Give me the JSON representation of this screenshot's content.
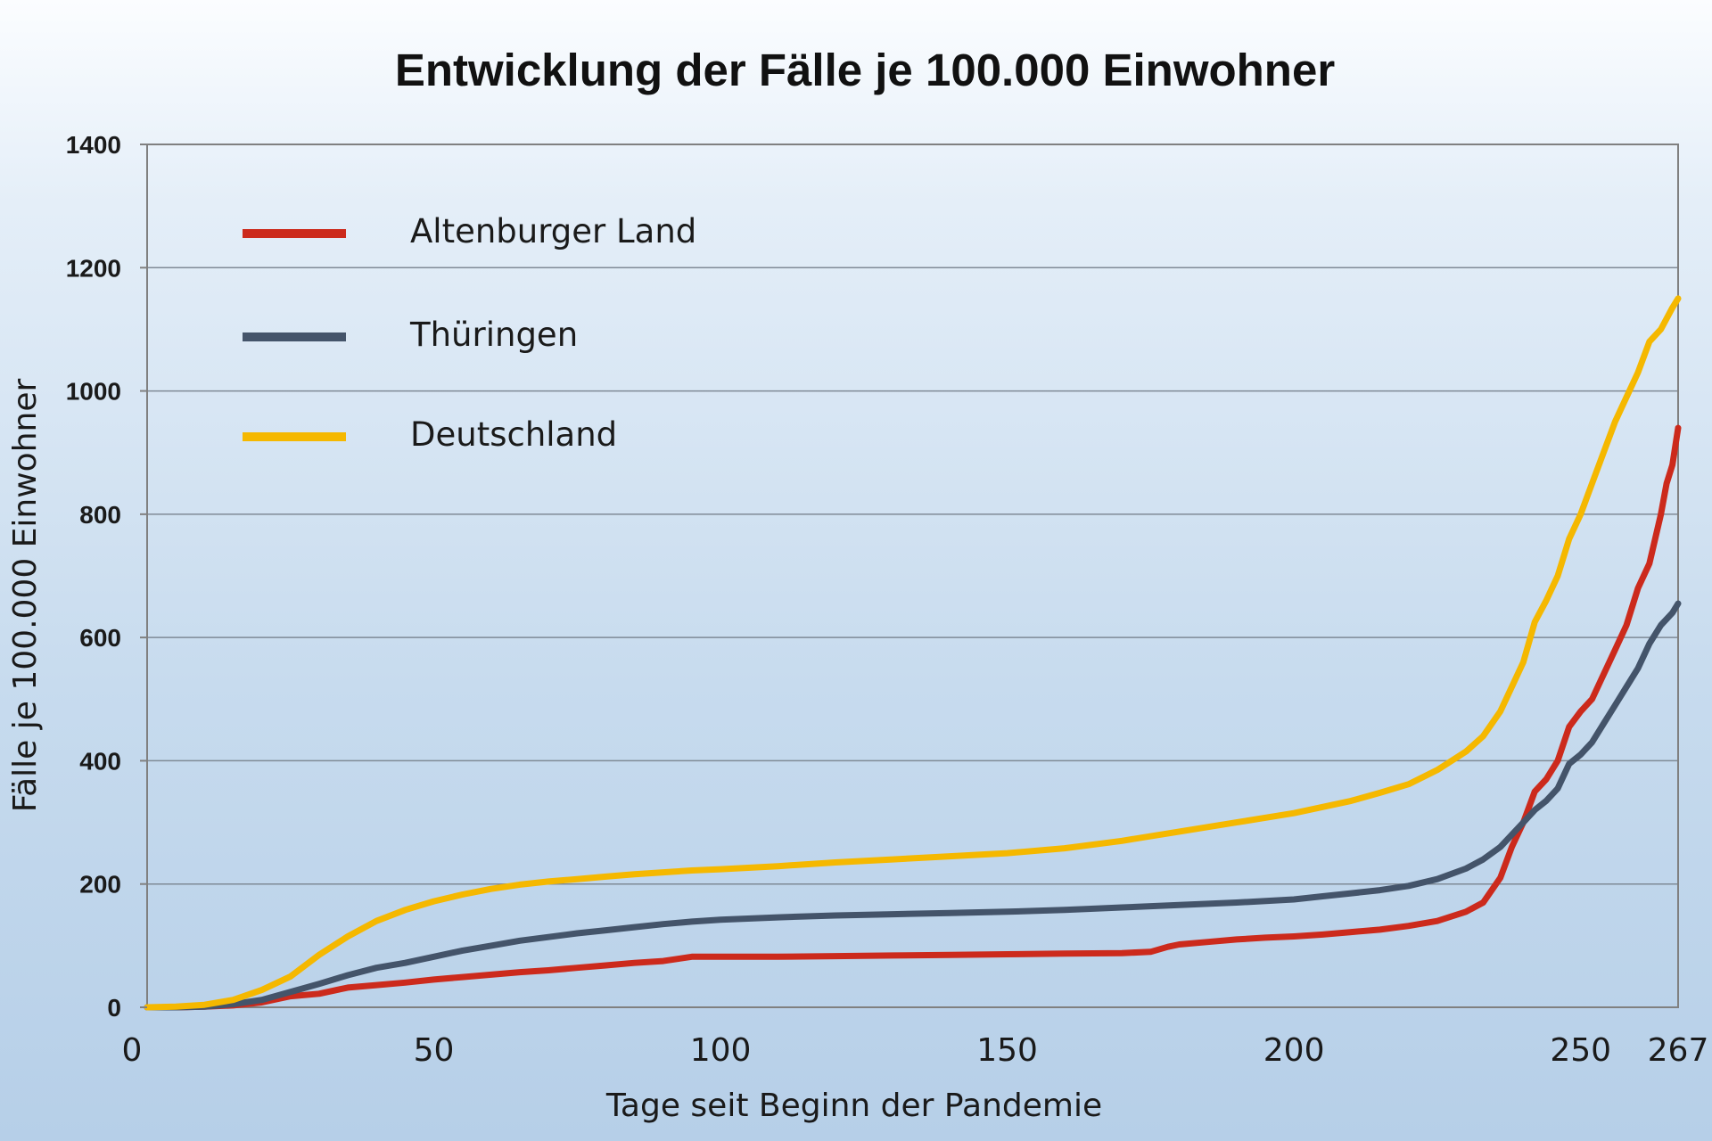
{
  "chart_data": {
    "type": "line",
    "title": "Entwicklung der Fälle je 100.000 Einwohner",
    "xlabel": "Tage seit Beginn der Pandemie",
    "ylabel": "Fälle  je 100.000 Einwohner",
    "xlim": [
      0,
      267
    ],
    "ylim": [
      0,
      1400
    ],
    "grid": true,
    "legend_position": "top-left",
    "xticks": [
      {
        "value": 0,
        "label": "0"
      },
      {
        "value": 50,
        "label": "50"
      },
      {
        "value": 100,
        "label": "100"
      },
      {
        "value": 150,
        "label": "150"
      },
      {
        "value": 200,
        "label": "200"
      },
      {
        "value": 250,
        "label": "250"
      },
      {
        "value": 267,
        "label": "267"
      }
    ],
    "yticks": [
      {
        "value": 0,
        "label": "0"
      },
      {
        "value": 200,
        "label": "200"
      },
      {
        "value": 400,
        "label": "400"
      },
      {
        "value": 600,
        "label": "600"
      },
      {
        "value": 800,
        "label": "800"
      },
      {
        "value": 1000,
        "label": "1000"
      },
      {
        "value": 1200,
        "label": "1200"
      },
      {
        "value": 1400,
        "label": "1400"
      }
    ],
    "series": [
      {
        "name": "Altenburger Land",
        "color": "#cc2a1c",
        "points": [
          [
            0,
            0
          ],
          [
            5,
            0
          ],
          [
            10,
            1
          ],
          [
            15,
            3
          ],
          [
            20,
            8
          ],
          [
            25,
            18
          ],
          [
            30,
            22
          ],
          [
            35,
            32
          ],
          [
            40,
            36
          ],
          [
            45,
            40
          ],
          [
            50,
            45
          ],
          [
            55,
            49
          ],
          [
            60,
            53
          ],
          [
            65,
            57
          ],
          [
            70,
            60
          ],
          [
            75,
            64
          ],
          [
            80,
            68
          ],
          [
            85,
            72
          ],
          [
            90,
            75
          ],
          [
            95,
            82
          ],
          [
            100,
            82
          ],
          [
            110,
            82
          ],
          [
            120,
            83
          ],
          [
            130,
            84
          ],
          [
            140,
            85
          ],
          [
            150,
            86
          ],
          [
            160,
            87
          ],
          [
            170,
            88
          ],
          [
            175,
            90
          ],
          [
            178,
            98
          ],
          [
            180,
            102
          ],
          [
            185,
            106
          ],
          [
            190,
            110
          ],
          [
            195,
            113
          ],
          [
            200,
            115
          ],
          [
            205,
            118
          ],
          [
            210,
            122
          ],
          [
            215,
            126
          ],
          [
            220,
            132
          ],
          [
            225,
            140
          ],
          [
            230,
            155
          ],
          [
            233,
            170
          ],
          [
            236,
            210
          ],
          [
            238,
            260
          ],
          [
            240,
            300
          ],
          [
            242,
            350
          ],
          [
            244,
            370
          ],
          [
            246,
            400
          ],
          [
            248,
            455
          ],
          [
            250,
            480
          ],
          [
            252,
            500
          ],
          [
            254,
            540
          ],
          [
            256,
            580
          ],
          [
            258,
            620
          ],
          [
            260,
            680
          ],
          [
            262,
            720
          ],
          [
            264,
            800
          ],
          [
            265,
            850
          ],
          [
            266,
            880
          ],
          [
            267,
            940
          ]
        ]
      },
      {
        "name": "Thüringen",
        "color": "#44546a",
        "points": [
          [
            0,
            0
          ],
          [
            5,
            0
          ],
          [
            10,
            1
          ],
          [
            15,
            5
          ],
          [
            20,
            12
          ],
          [
            25,
            25
          ],
          [
            30,
            38
          ],
          [
            35,
            52
          ],
          [
            40,
            64
          ],
          [
            45,
            72
          ],
          [
            50,
            82
          ],
          [
            55,
            92
          ],
          [
            60,
            100
          ],
          [
            65,
            108
          ],
          [
            70,
            114
          ],
          [
            75,
            120
          ],
          [
            80,
            125
          ],
          [
            85,
            130
          ],
          [
            90,
            135
          ],
          [
            95,
            139
          ],
          [
            100,
            142
          ],
          [
            110,
            146
          ],
          [
            120,
            149
          ],
          [
            130,
            151
          ],
          [
            140,
            153
          ],
          [
            150,
            155
          ],
          [
            160,
            158
          ],
          [
            170,
            162
          ],
          [
            180,
            166
          ],
          [
            190,
            170
          ],
          [
            200,
            175
          ],
          [
            205,
            180
          ],
          [
            210,
            185
          ],
          [
            215,
            190
          ],
          [
            220,
            197
          ],
          [
            225,
            208
          ],
          [
            230,
            225
          ],
          [
            233,
            240
          ],
          [
            236,
            260
          ],
          [
            238,
            280
          ],
          [
            240,
            300
          ],
          [
            242,
            320
          ],
          [
            244,
            335
          ],
          [
            246,
            355
          ],
          [
            248,
            395
          ],
          [
            250,
            410
          ],
          [
            252,
            430
          ],
          [
            254,
            460
          ],
          [
            256,
            490
          ],
          [
            258,
            520
          ],
          [
            260,
            550
          ],
          [
            262,
            590
          ],
          [
            264,
            620
          ],
          [
            266,
            640
          ],
          [
            267,
            655
          ]
        ]
      },
      {
        "name": "Deutschland",
        "color": "#f5b800",
        "points": [
          [
            0,
            0
          ],
          [
            5,
            1
          ],
          [
            10,
            4
          ],
          [
            15,
            12
          ],
          [
            20,
            28
          ],
          [
            25,
            50
          ],
          [
            30,
            85
          ],
          [
            35,
            115
          ],
          [
            40,
            140
          ],
          [
            45,
            158
          ],
          [
            50,
            172
          ],
          [
            55,
            183
          ],
          [
            60,
            192
          ],
          [
            65,
            199
          ],
          [
            70,
            204
          ],
          [
            75,
            208
          ],
          [
            80,
            212
          ],
          [
            85,
            216
          ],
          [
            90,
            219
          ],
          [
            95,
            222
          ],
          [
            100,
            224
          ],
          [
            110,
            229
          ],
          [
            120,
            235
          ],
          [
            130,
            240
          ],
          [
            140,
            245
          ],
          [
            150,
            250
          ],
          [
            160,
            258
          ],
          [
            170,
            270
          ],
          [
            180,
            285
          ],
          [
            190,
            300
          ],
          [
            200,
            315
          ],
          [
            205,
            325
          ],
          [
            210,
            335
          ],
          [
            215,
            348
          ],
          [
            220,
            362
          ],
          [
            225,
            385
          ],
          [
            230,
            415
          ],
          [
            233,
            440
          ],
          [
            236,
            480
          ],
          [
            238,
            520
          ],
          [
            240,
            560
          ],
          [
            242,
            625
          ],
          [
            244,
            660
          ],
          [
            246,
            700
          ],
          [
            248,
            760
          ],
          [
            250,
            800
          ],
          [
            252,
            850
          ],
          [
            254,
            900
          ],
          [
            256,
            950
          ],
          [
            258,
            990
          ],
          [
            260,
            1030
          ],
          [
            262,
            1080
          ],
          [
            264,
            1100
          ],
          [
            266,
            1135
          ],
          [
            267,
            1150
          ]
        ]
      }
    ]
  }
}
